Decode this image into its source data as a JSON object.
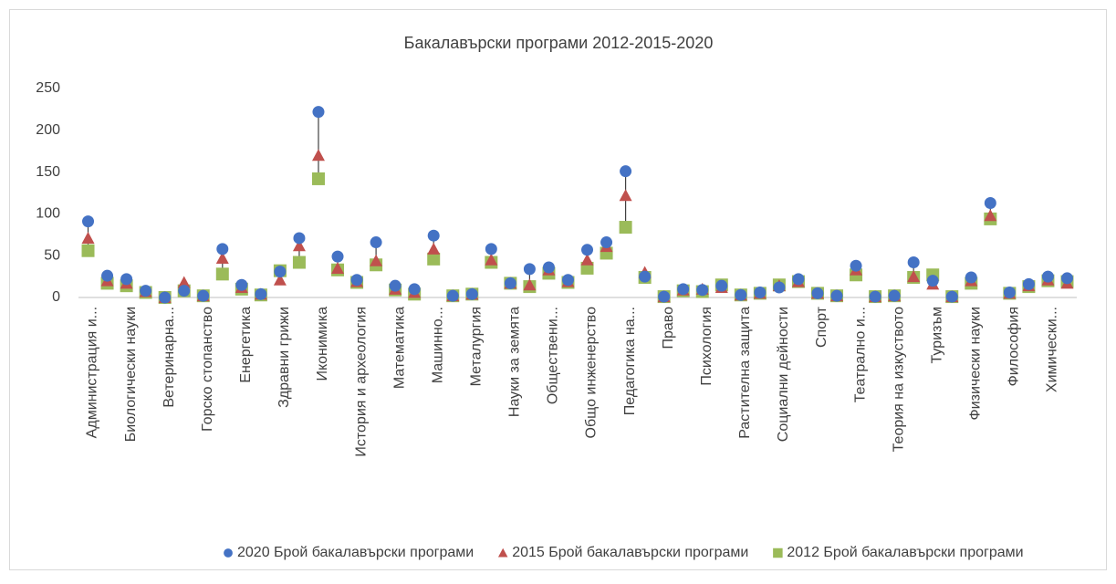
{
  "chart_data": {
    "type": "hilo-marker",
    "title": "Бакалавърски програми 2012-2015-2020",
    "categories": [
      "Администрация и...",
      null,
      "Биологически науки",
      null,
      "Ветеринарна...",
      null,
      "Горско стопанство",
      null,
      "Енергетика",
      null,
      "Здравни грижи",
      null,
      "Иконимика",
      null,
      "История и археология",
      null,
      "Математика",
      null,
      "Машинно...",
      null,
      "Металургия",
      null,
      "Науки за земята",
      null,
      "Обществени...",
      null,
      "Общо инженерство",
      null,
      "Педагогика на...",
      null,
      "Право",
      null,
      "Психология",
      null,
      "Растителна защита",
      null,
      "Социални дейности",
      null,
      "Спорт",
      null,
      "Театрално и...",
      null,
      "Теория на изкуството",
      null,
      "Туризъм",
      null,
      "Физически науки",
      null,
      "Философия",
      null,
      "Химически...",
      null
    ],
    "series": [
      {
        "name": "2020 Брой бакалавърски програми",
        "color": "#4472c4",
        "marker": "circle",
        "values": [
          91,
          26,
          22,
          8,
          0,
          8,
          2,
          58,
          15,
          4,
          31,
          71,
          222,
          49,
          21,
          66,
          14,
          10,
          74,
          2,
          4,
          58,
          17,
          34,
          36,
          21,
          57,
          66,
          151,
          25,
          1,
          10,
          9,
          14,
          3,
          6,
          12,
          22,
          5,
          2,
          38,
          1,
          2,
          42,
          20,
          1,
          24,
          113,
          6,
          16,
          25,
          23
        ]
      },
      {
        "name": "2015 Брой бакалавърски програми",
        "color": "#c0504d",
        "marker": "triangle",
        "values": [
          71,
          20,
          17,
          7,
          0,
          18,
          2,
          47,
          12,
          4,
          21,
          62,
          170,
          35,
          19,
          44,
          10,
          6,
          58,
          2,
          4,
          45,
          17,
          15,
          33,
          19,
          45,
          61,
          122,
          30,
          1,
          9,
          10,
          12,
          3,
          5,
          14,
          19,
          5,
          2,
          33,
          1,
          2,
          25,
          16,
          1,
          20,
          98,
          5,
          14,
          21,
          17
        ]
      },
      {
        "name": "2012 Брой бакалавърски програми",
        "color": "#9bbb59",
        "marker": "square",
        "values": [
          56,
          17,
          14,
          6,
          0,
          8,
          2,
          28,
          10,
          3,
          32,
          42,
          142,
          33,
          18,
          39,
          9,
          4,
          46,
          2,
          4,
          42,
          17,
          13,
          29,
          18,
          35,
          53,
          84,
          24,
          1,
          8,
          7,
          15,
          3,
          5,
          15,
          19,
          5,
          2,
          27,
          1,
          2,
          24,
          27,
          1,
          17,
          94,
          5,
          13,
          20,
          19
        ]
      }
    ],
    "ylim": [
      0,
      250
    ],
    "yticks": [
      0,
      50,
      100,
      150,
      200,
      250
    ],
    "grid": false,
    "legend": "bottom"
  }
}
